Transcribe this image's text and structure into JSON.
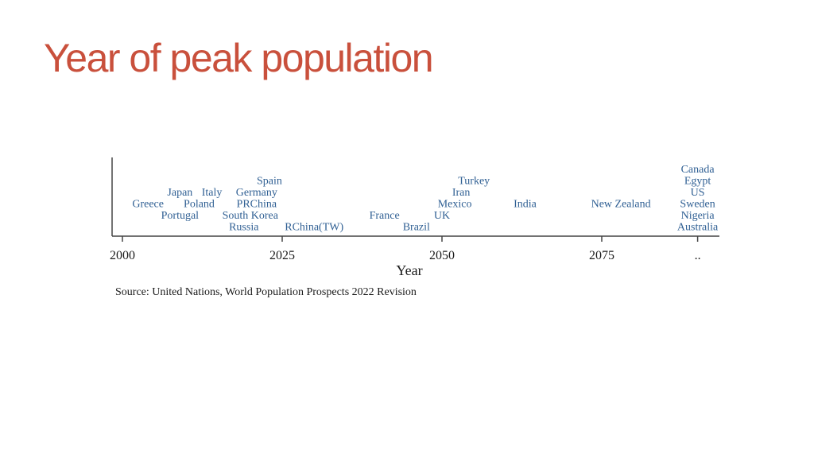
{
  "slide": {
    "title": "Year of peak population"
  },
  "chart_data": {
    "type": "scatter",
    "xlabel": "Year",
    "xlim": [
      1998.5,
      2091.5
    ],
    "xticks": [
      {
        "value": 2000,
        "label": "2000"
      },
      {
        "value": 2025,
        "label": "2025"
      },
      {
        "value": 2050,
        "label": "2050"
      },
      {
        "value": 2075,
        "label": "2075"
      },
      {
        "value": 2090,
        "label": ".."
      }
    ],
    "source": "Source: United Nations, World Population Prospects 2022 Revision",
    "label_color": "#2f5f93",
    "points": [
      {
        "country": "Greece",
        "year": 2004,
        "row": 3
      },
      {
        "country": "Japan",
        "year": 2009,
        "row": 2
      },
      {
        "country": "Italy",
        "year": 2014,
        "row": 2
      },
      {
        "country": "Poland",
        "year": 2012,
        "row": 3
      },
      {
        "country": "Portugal",
        "year": 2009,
        "row": 4
      },
      {
        "country": "Spain",
        "year": 2023,
        "row": 1
      },
      {
        "country": "Germany",
        "year": 2021,
        "row": 2
      },
      {
        "country": "PRChina",
        "year": 2021,
        "row": 3
      },
      {
        "country": "South Korea",
        "year": 2020,
        "row": 4
      },
      {
        "country": "Russia",
        "year": 2019,
        "row": 5
      },
      {
        "country": "RChina(TW)",
        "year": 2030,
        "row": 5
      },
      {
        "country": "France",
        "year": 2041,
        "row": 4
      },
      {
        "country": "Brazil",
        "year": 2046,
        "row": 5
      },
      {
        "country": "Turkey",
        "year": 2055,
        "row": 1
      },
      {
        "country": "Iran",
        "year": 2053,
        "row": 2
      },
      {
        "country": "Mexico",
        "year": 2052,
        "row": 3
      },
      {
        "country": "UK",
        "year": 2050,
        "row": 4
      },
      {
        "country": "India",
        "year": 2063,
        "row": 3
      },
      {
        "country": "New Zealand",
        "year": 2078,
        "row": 3
      },
      {
        "country": "Canada",
        "year": 2090,
        "row": 0
      },
      {
        "country": "Egypt",
        "year": 2090,
        "row": 1
      },
      {
        "country": "US",
        "year": 2090,
        "row": 2
      },
      {
        "country": "Sweden",
        "year": 2090,
        "row": 3
      },
      {
        "country": "Nigeria",
        "year": 2090,
        "row": 4
      },
      {
        "country": "Australia",
        "year": 2090,
        "row": 5
      }
    ]
  }
}
